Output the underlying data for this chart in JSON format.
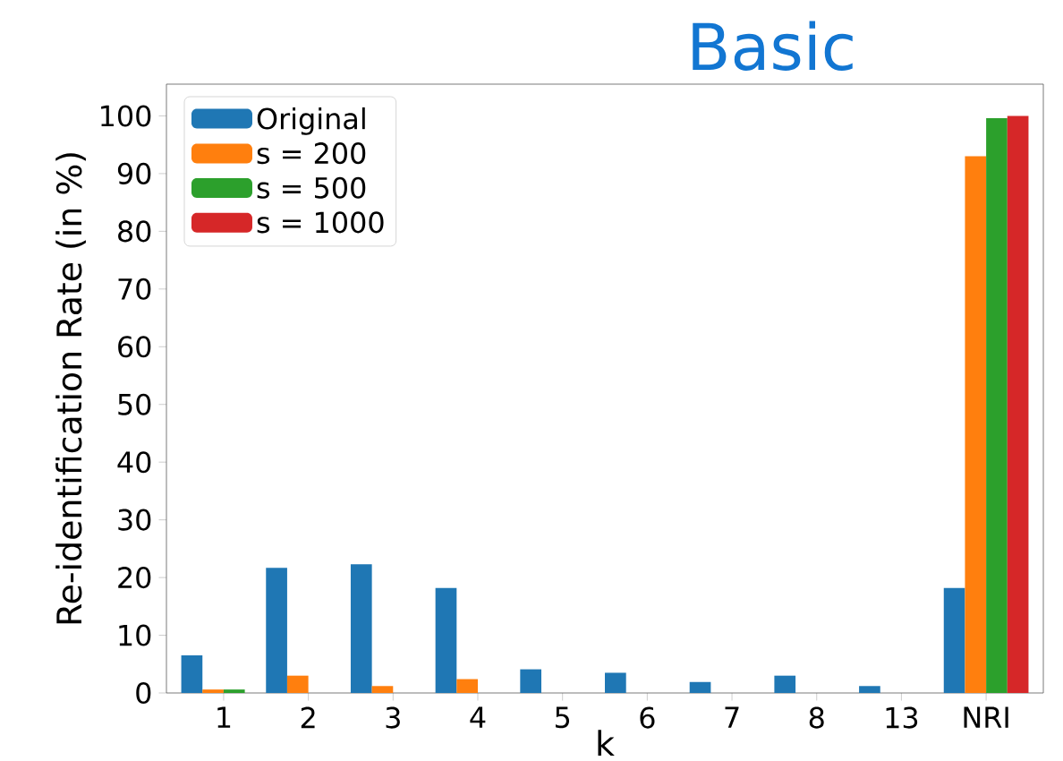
{
  "chart_data": {
    "type": "bar",
    "title": "Basic",
    "xlabel": "k",
    "ylabel": "Re-identification Rate (in %)",
    "categories": [
      "1",
      "2",
      "3",
      "4",
      "5",
      "6",
      "7",
      "8",
      "13",
      "NRI"
    ],
    "series": [
      {
        "name": "Original",
        "color": "#1f77b4",
        "values": [
          6.5,
          21.7,
          22.3,
          18.2,
          4.1,
          3.5,
          1.9,
          3.0,
          1.2,
          18.2
        ]
      },
      {
        "name": "s = 200",
        "color": "#ff7f0e",
        "values": [
          0.6,
          3.0,
          1.2,
          2.4,
          null,
          null,
          null,
          null,
          null,
          93.0
        ]
      },
      {
        "name": "s = 500",
        "color": "#2ca02c",
        "values": [
          0.6,
          null,
          null,
          null,
          null,
          null,
          null,
          null,
          null,
          99.6
        ]
      },
      {
        "name": "s = 1000",
        "color": "#d62728",
        "values": [
          null,
          null,
          null,
          null,
          null,
          null,
          null,
          null,
          null,
          100
        ]
      }
    ],
    "ylim": [
      0,
      105.5
    ],
    "yticks": [
      0,
      10,
      20,
      30,
      40,
      50,
      60,
      70,
      80,
      90,
      100
    ],
    "grid": false,
    "legend": "top left"
  }
}
